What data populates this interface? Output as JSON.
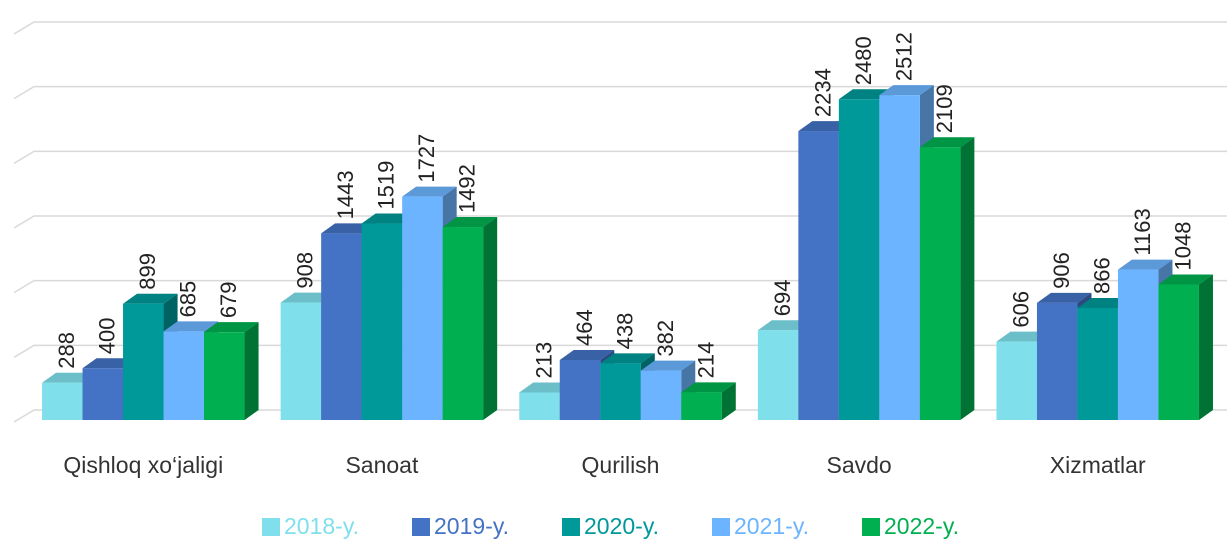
{
  "chart_data": {
    "type": "bar3d",
    "categories": [
      "Qishloq xo‘jaligi",
      "Sanoat",
      "Qurilish",
      "Savdo",
      "Xizmatlar"
    ],
    "series": [
      {
        "name": "2018-y.",
        "color": "#7fe0ec",
        "values": [
          288,
          908,
          213,
          694,
          606
        ]
      },
      {
        "name": "2019-y.",
        "color": "#4472c4",
        "values": [
          400,
          1443,
          464,
          2234,
          906
        ]
      },
      {
        "name": "2020-y.",
        "color": "#009999",
        "values": [
          899,
          1519,
          438,
          2480,
          866
        ]
      },
      {
        "name": "2021-y.",
        "color": "#6cb4ff",
        "values": [
          685,
          1727,
          382,
          2512,
          1163
        ]
      },
      {
        "name": "2022-y.",
        "color": "#00b050",
        "values": [
          679,
          1492,
          214,
          2109,
          1048
        ]
      }
    ],
    "ylim": [
      0,
      3000
    ],
    "yticks": [
      0,
      500,
      1000,
      1500,
      2000,
      2500,
      3000
    ],
    "grid": true,
    "legend": "bottom"
  }
}
